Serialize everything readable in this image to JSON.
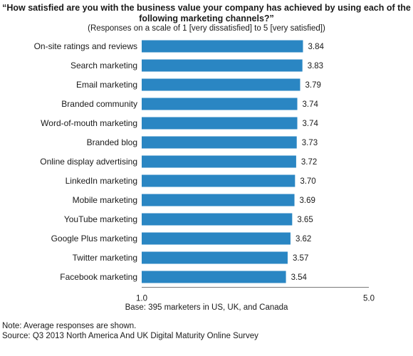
{
  "chart_data": {
    "type": "bar",
    "orientation": "horizontal",
    "title": "“How satisfied are you with the business value your company has achieved by using each of the following marketing channels?”",
    "subtitle": "(Responses on a scale of 1 [very dissatisfied] to 5 [very satisfied])",
    "categories": [
      "On-site ratings and reviews",
      "Search marketing",
      "Email marketing",
      "Branded community",
      "Word-of-mouth marketing",
      "Branded blog",
      "Online display advertising",
      "LinkedIn marketing",
      "Mobile marketing",
      "YouTube marketing",
      "Google Plus marketing",
      "Twitter marketing",
      "Facebook marketing"
    ],
    "values": [
      3.84,
      3.83,
      3.79,
      3.74,
      3.74,
      3.73,
      3.72,
      3.7,
      3.69,
      3.65,
      3.62,
      3.57,
      3.54
    ],
    "value_labels": [
      "3.84",
      "3.83",
      "3.79",
      "3.74",
      "3.74",
      "3.73",
      "3.72",
      "3.70",
      "3.69",
      "3.65",
      "3.62",
      "3.57",
      "3.54"
    ],
    "xlim": [
      1.0,
      5.0
    ],
    "tick_labels": [
      "1.0",
      "5.0"
    ],
    "bar_color": "#2a86c3",
    "grid": false,
    "legend": "none"
  },
  "footer": {
    "base": "Base: 395 marketers in US, UK, and Canada",
    "note": "Note: Average responses are shown.",
    "source": "Source: Q3 2013 North America And UK Digital Maturity Online Survey"
  }
}
